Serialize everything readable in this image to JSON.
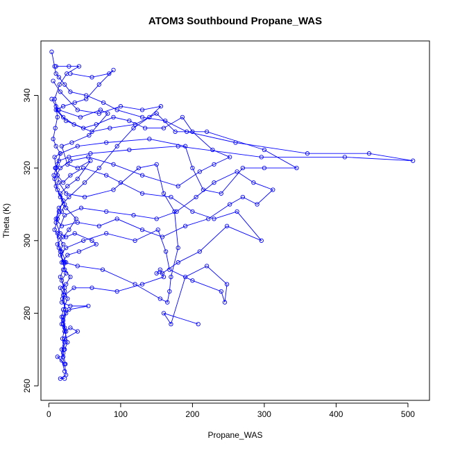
{
  "chart_data": {
    "type": "line",
    "title": "ATOM3 Southbound Propane_WAS",
    "xlabel": "Propane_WAS",
    "ylabel": "Theta (K)",
    "xlim": [
      -11,
      530
    ],
    "ylim": [
      256,
      355
    ],
    "xticks": [
      0,
      100,
      200,
      300,
      400,
      500
    ],
    "yticks": [
      260,
      280,
      300,
      320,
      340
    ],
    "grid": false,
    "legend": "none",
    "colors": {
      "series": "#0000ff",
      "axis": "#000000"
    },
    "series": [
      {
        "values": [
          {
            "x": 4,
            "y": 352
          },
          {
            "x": 8,
            "y": 348
          },
          {
            "x": 10,
            "y": 346
          },
          {
            "x": 14,
            "y": 345
          },
          {
            "x": 22,
            "y": 343
          },
          {
            "x": 30,
            "y": 341
          },
          {
            "x": 52,
            "y": 340
          },
          {
            "x": 76,
            "y": 338
          },
          {
            "x": 95,
            "y": 336
          },
          {
            "x": 130,
            "y": 334
          },
          {
            "x": 162,
            "y": 333
          },
          {
            "x": 192,
            "y": 330
          },
          {
            "x": 260,
            "y": 327
          },
          {
            "x": 360,
            "y": 324
          },
          {
            "x": 446,
            "y": 324
          },
          {
            "x": 507,
            "y": 322
          },
          {
            "x": 412,
            "y": 323
          },
          {
            "x": 296,
            "y": 323
          },
          {
            "x": 180,
            "y": 326
          },
          {
            "x": 112,
            "y": 325
          },
          {
            "x": 58,
            "y": 324
          },
          {
            "x": 28,
            "y": 323
          },
          {
            "x": 14,
            "y": 322
          },
          {
            "x": 9,
            "y": 320
          },
          {
            "x": 12,
            "y": 318
          },
          {
            "x": 20,
            "y": 316
          },
          {
            "x": 30,
            "y": 318
          },
          {
            "x": 48,
            "y": 320
          },
          {
            "x": 80,
            "y": 318
          },
          {
            "x": 100,
            "y": 316
          },
          {
            "x": 130,
            "y": 313
          },
          {
            "x": 170,
            "y": 312
          },
          {
            "x": 200,
            "y": 308
          },
          {
            "x": 230,
            "y": 306
          },
          {
            "x": 262,
            "y": 308
          },
          {
            "x": 296,
            "y": 300
          },
          {
            "x": 248,
            "y": 304
          },
          {
            "x": 210,
            "y": 297
          },
          {
            "x": 180,
            "y": 294
          },
          {
            "x": 158,
            "y": 291
          },
          {
            "x": 150,
            "y": 291
          },
          {
            "x": 155,
            "y": 292
          },
          {
            "x": 160,
            "y": 290
          },
          {
            "x": 130,
            "y": 288
          },
          {
            "x": 95,
            "y": 286
          },
          {
            "x": 60,
            "y": 287
          },
          {
            "x": 35,
            "y": 287
          },
          {
            "x": 22,
            "y": 285
          },
          {
            "x": 18,
            "y": 283
          },
          {
            "x": 30,
            "y": 282
          },
          {
            "x": 55,
            "y": 282
          },
          {
            "x": 28,
            "y": 281
          },
          {
            "x": 20,
            "y": 279
          },
          {
            "x": 18,
            "y": 277
          },
          {
            "x": 22,
            "y": 275
          },
          {
            "x": 30,
            "y": 276
          },
          {
            "x": 40,
            "y": 275
          },
          {
            "x": 22,
            "y": 273
          },
          {
            "x": 18,
            "y": 270
          },
          {
            "x": 20,
            "y": 268
          },
          {
            "x": 12,
            "y": 268
          },
          {
            "x": 22,
            "y": 266
          },
          {
            "x": 24,
            "y": 263
          },
          {
            "x": 16,
            "y": 262
          },
          {
            "x": 22,
            "y": 262
          }
        ]
      },
      {
        "values": [
          {
            "x": 10,
            "y": 348
          },
          {
            "x": 28,
            "y": 348
          },
          {
            "x": 42,
            "y": 348
          },
          {
            "x": 25,
            "y": 346
          },
          {
            "x": 15,
            "y": 343
          },
          {
            "x": 8,
            "y": 339
          },
          {
            "x": 12,
            "y": 336
          },
          {
            "x": 20,
            "y": 334
          },
          {
            "x": 35,
            "y": 332
          },
          {
            "x": 60,
            "y": 330
          },
          {
            "x": 85,
            "y": 331
          },
          {
            "x": 120,
            "y": 332
          },
          {
            "x": 150,
            "y": 335
          },
          {
            "x": 176,
            "y": 330
          },
          {
            "x": 220,
            "y": 330
          },
          {
            "x": 300,
            "y": 325
          },
          {
            "x": 345,
            "y": 320
          },
          {
            "x": 300,
            "y": 320
          },
          {
            "x": 270,
            "y": 320
          },
          {
            "x": 240,
            "y": 313
          },
          {
            "x": 215,
            "y": 314
          },
          {
            "x": 200,
            "y": 320
          },
          {
            "x": 190,
            "y": 326
          },
          {
            "x": 140,
            "y": 328
          },
          {
            "x": 80,
            "y": 327
          },
          {
            "x": 40,
            "y": 326
          },
          {
            "x": 16,
            "y": 324
          },
          {
            "x": 8,
            "y": 323
          },
          {
            "x": 10,
            "y": 320
          },
          {
            "x": 14,
            "y": 316
          },
          {
            "x": 24,
            "y": 313
          },
          {
            "x": 50,
            "y": 312
          },
          {
            "x": 90,
            "y": 314
          },
          {
            "x": 125,
            "y": 320
          },
          {
            "x": 150,
            "y": 321
          },
          {
            "x": 160,
            "y": 313
          },
          {
            "x": 175,
            "y": 308
          },
          {
            "x": 180,
            "y": 298
          },
          {
            "x": 170,
            "y": 290
          },
          {
            "x": 168,
            "y": 286
          },
          {
            "x": 165,
            "y": 283
          },
          {
            "x": 155,
            "y": 284
          },
          {
            "x": 120,
            "y": 288
          },
          {
            "x": 75,
            "y": 292
          },
          {
            "x": 40,
            "y": 293
          },
          {
            "x": 22,
            "y": 294
          },
          {
            "x": 16,
            "y": 296
          },
          {
            "x": 24,
            "y": 298
          },
          {
            "x": 48,
            "y": 300
          },
          {
            "x": 80,
            "y": 302
          },
          {
            "x": 120,
            "y": 300
          },
          {
            "x": 152,
            "y": 303
          },
          {
            "x": 163,
            "y": 297
          },
          {
            "x": 168,
            "y": 292
          },
          {
            "x": 200,
            "y": 289
          },
          {
            "x": 240,
            "y": 286
          },
          {
            "x": 245,
            "y": 283
          },
          {
            "x": 248,
            "y": 288
          },
          {
            "x": 220,
            "y": 293
          },
          {
            "x": 190,
            "y": 290
          },
          {
            "x": 170,
            "y": 277
          },
          {
            "x": 160,
            "y": 280
          },
          {
            "x": 208,
            "y": 277
          }
        ]
      },
      {
        "values": [
          {
            "x": 6,
            "y": 344
          },
          {
            "x": 16,
            "y": 341
          },
          {
            "x": 40,
            "y": 336
          },
          {
            "x": 70,
            "y": 335
          },
          {
            "x": 100,
            "y": 337
          },
          {
            "x": 130,
            "y": 336
          },
          {
            "x": 156,
            "y": 337
          },
          {
            "x": 140,
            "y": 334
          },
          {
            "x": 118,
            "y": 331
          },
          {
            "x": 95,
            "y": 326
          },
          {
            "x": 70,
            "y": 320
          },
          {
            "x": 50,
            "y": 316
          },
          {
            "x": 28,
            "y": 312
          },
          {
            "x": 14,
            "y": 309
          },
          {
            "x": 10,
            "y": 306
          },
          {
            "x": 18,
            "y": 304
          },
          {
            "x": 40,
            "y": 305
          },
          {
            "x": 70,
            "y": 304
          },
          {
            "x": 95,
            "y": 306
          },
          {
            "x": 130,
            "y": 303
          },
          {
            "x": 158,
            "y": 301
          },
          {
            "x": 190,
            "y": 304
          },
          {
            "x": 222,
            "y": 306
          },
          {
            "x": 252,
            "y": 310
          },
          {
            "x": 270,
            "y": 312
          },
          {
            "x": 290,
            "y": 310
          },
          {
            "x": 312,
            "y": 314
          },
          {
            "x": 285,
            "y": 316
          },
          {
            "x": 262,
            "y": 319
          },
          {
            "x": 230,
            "y": 316
          },
          {
            "x": 205,
            "y": 312
          },
          {
            "x": 178,
            "y": 308
          },
          {
            "x": 150,
            "y": 306
          },
          {
            "x": 118,
            "y": 307
          },
          {
            "x": 80,
            "y": 308
          },
          {
            "x": 45,
            "y": 309
          },
          {
            "x": 22,
            "y": 307
          },
          {
            "x": 12,
            "y": 302
          },
          {
            "x": 14,
            "y": 298
          },
          {
            "x": 22,
            "y": 292
          },
          {
            "x": 30,
            "y": 290
          },
          {
            "x": 24,
            "y": 288
          },
          {
            "x": 16,
            "y": 287
          },
          {
            "x": 20,
            "y": 285
          },
          {
            "x": 24,
            "y": 280
          },
          {
            "x": 20,
            "y": 277
          },
          {
            "x": 26,
            "y": 272
          },
          {
            "x": 22,
            "y": 270
          }
        ]
      },
      {
        "values": [
          {
            "x": 4,
            "y": 339
          },
          {
            "x": 10,
            "y": 337
          },
          {
            "x": 12,
            "y": 334
          },
          {
            "x": 9,
            "y": 331
          },
          {
            "x": 6,
            "y": 328
          },
          {
            "x": 10,
            "y": 326
          },
          {
            "x": 16,
            "y": 324
          },
          {
            "x": 12,
            "y": 321
          },
          {
            "x": 7,
            "y": 318
          },
          {
            "x": 10,
            "y": 315
          },
          {
            "x": 16,
            "y": 312
          },
          {
            "x": 22,
            "y": 310
          },
          {
            "x": 18,
            "y": 308
          },
          {
            "x": 12,
            "y": 306
          },
          {
            "x": 8,
            "y": 303
          },
          {
            "x": 14,
            "y": 301
          },
          {
            "x": 20,
            "y": 299
          },
          {
            "x": 16,
            "y": 297
          },
          {
            "x": 20,
            "y": 294
          },
          {
            "x": 24,
            "y": 291
          },
          {
            "x": 18,
            "y": 289
          },
          {
            "x": 22,
            "y": 286
          },
          {
            "x": 26,
            "y": 284
          },
          {
            "x": 20,
            "y": 281
          },
          {
            "x": 18,
            "y": 279
          },
          {
            "x": 22,
            "y": 276
          },
          {
            "x": 19,
            "y": 273
          },
          {
            "x": 21,
            "y": 270
          },
          {
            "x": 18,
            "y": 267
          },
          {
            "x": 22,
            "y": 264
          }
        ]
      },
      {
        "values": [
          {
            "x": 30,
            "y": 346
          },
          {
            "x": 60,
            "y": 345
          },
          {
            "x": 84,
            "y": 346
          },
          {
            "x": 90,
            "y": 347
          },
          {
            "x": 70,
            "y": 343
          },
          {
            "x": 52,
            "y": 339
          },
          {
            "x": 36,
            "y": 338
          },
          {
            "x": 20,
            "y": 337
          },
          {
            "x": 10,
            "y": 336
          },
          {
            "x": 24,
            "y": 333
          },
          {
            "x": 48,
            "y": 331
          },
          {
            "x": 66,
            "y": 332
          },
          {
            "x": 90,
            "y": 334
          },
          {
            "x": 112,
            "y": 333
          },
          {
            "x": 134,
            "y": 331
          },
          {
            "x": 160,
            "y": 331
          },
          {
            "x": 186,
            "y": 334
          },
          {
            "x": 200,
            "y": 330
          },
          {
            "x": 228,
            "y": 325
          },
          {
            "x": 252,
            "y": 323
          },
          {
            "x": 230,
            "y": 321
          },
          {
            "x": 210,
            "y": 319
          },
          {
            "x": 180,
            "y": 315
          },
          {
            "x": 130,
            "y": 318
          },
          {
            "x": 90,
            "y": 321
          },
          {
            "x": 55,
            "y": 323
          },
          {
            "x": 30,
            "y": 322
          },
          {
            "x": 16,
            "y": 320
          },
          {
            "x": 8,
            "y": 317
          },
          {
            "x": 12,
            "y": 314
          },
          {
            "x": 20,
            "y": 311
          },
          {
            "x": 14,
            "y": 308
          },
          {
            "x": 10,
            "y": 305
          },
          {
            "x": 16,
            "y": 302
          },
          {
            "x": 24,
            "y": 301
          },
          {
            "x": 36,
            "y": 302
          },
          {
            "x": 60,
            "y": 300
          },
          {
            "x": 66,
            "y": 299
          },
          {
            "x": 42,
            "y": 297
          },
          {
            "x": 26,
            "y": 296
          },
          {
            "x": 18,
            "y": 294
          }
        ]
      },
      {
        "values": [
          {
            "x": 14,
            "y": 336
          },
          {
            "x": 44,
            "y": 334
          },
          {
            "x": 72,
            "y": 336
          },
          {
            "x": 82,
            "y": 335
          },
          {
            "x": 56,
            "y": 329
          },
          {
            "x": 32,
            "y": 327
          },
          {
            "x": 18,
            "y": 326
          },
          {
            "x": 26,
            "y": 321
          },
          {
            "x": 40,
            "y": 320
          },
          {
            "x": 58,
            "y": 322
          },
          {
            "x": 40,
            "y": 317
          },
          {
            "x": 26,
            "y": 315
          },
          {
            "x": 16,
            "y": 313
          },
          {
            "x": 24,
            "y": 309
          },
          {
            "x": 38,
            "y": 306
          },
          {
            "x": 28,
            "y": 303
          },
          {
            "x": 20,
            "y": 301
          },
          {
            "x": 12,
            "y": 299
          },
          {
            "x": 18,
            "y": 297
          },
          {
            "x": 24,
            "y": 294
          },
          {
            "x": 20,
            "y": 292
          },
          {
            "x": 16,
            "y": 290
          },
          {
            "x": 22,
            "y": 287
          },
          {
            "x": 19,
            "y": 284
          },
          {
            "x": 23,
            "y": 281
          },
          {
            "x": 20,
            "y": 278
          },
          {
            "x": 24,
            "y": 275
          },
          {
            "x": 22,
            "y": 272
          },
          {
            "x": 20,
            "y": 269
          },
          {
            "x": 23,
            "y": 266
          }
        ]
      }
    ]
  }
}
